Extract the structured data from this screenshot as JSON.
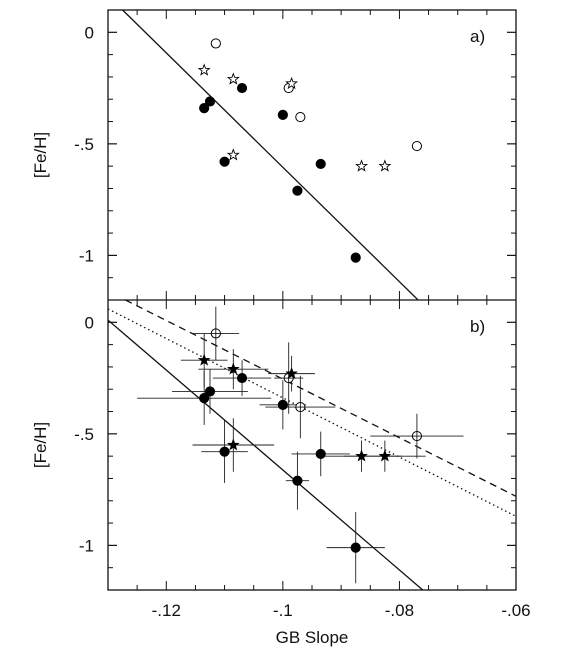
{
  "chart_data": [
    {
      "type": "scatter",
      "panel_label": "a)",
      "xlabel": "",
      "ylabel": "[Fe/H]",
      "xlim": [
        -0.13,
        -0.06
      ],
      "ylim": [
        -1.2,
        0.1
      ],
      "y_ticks": [
        "0",
        "-.5",
        "-1"
      ],
      "y_tick_values": [
        0,
        -0.5,
        -1
      ],
      "x_ticks": [],
      "grid": false,
      "series": [
        {
          "marker": "filled-circle",
          "points": [
            {
              "x": -0.1135,
              "y": -0.34
            },
            {
              "x": -0.1125,
              "y": -0.31
            },
            {
              "x": -0.11,
              "y": -0.58
            },
            {
              "x": -0.107,
              "y": -0.25
            },
            {
              "x": -0.1,
              "y": -0.37
            },
            {
              "x": -0.0975,
              "y": -0.71
            },
            {
              "x": -0.0935,
              "y": -0.59
            },
            {
              "x": -0.0875,
              "y": -1.01
            }
          ]
        },
        {
          "marker": "open-circle",
          "points": [
            {
              "x": -0.1115,
              "y": -0.05
            },
            {
              "x": -0.099,
              "y": -0.25
            },
            {
              "x": -0.097,
              "y": -0.38
            },
            {
              "x": -0.077,
              "y": -0.51
            }
          ]
        },
        {
          "marker": "open-star",
          "points": [
            {
              "x": -0.1135,
              "y": -0.17
            },
            {
              "x": -0.1085,
              "y": -0.21
            },
            {
              "x": -0.0985,
              "y": -0.23
            },
            {
              "x": -0.1085,
              "y": -0.55
            },
            {
              "x": -0.0865,
              "y": -0.6
            },
            {
              "x": -0.0825,
              "y": -0.6
            }
          ]
        }
      ],
      "lines": [
        {
          "style": "solid",
          "x": [
            -0.1275,
            -0.0768
          ],
          "y": [
            0.1,
            -1.2
          ]
        }
      ]
    },
    {
      "type": "scatter",
      "panel_label": "b)",
      "xlabel": "GB Slope",
      "ylabel": "[Fe/H]",
      "xlim": [
        -0.13,
        -0.06
      ],
      "ylim": [
        -1.2,
        0.1
      ],
      "y_ticks": [
        "0",
        "-.5",
        "-1"
      ],
      "y_tick_values": [
        0,
        -0.5,
        -1
      ],
      "x_ticks": [
        "-.12",
        "-.1",
        "-.08",
        "-.06"
      ],
      "x_tick_values": [
        -0.12,
        -0.1,
        -0.08,
        -0.06
      ],
      "grid": false,
      "series": [
        {
          "marker": "filled-circle",
          "points": [
            {
              "x": -0.1135,
              "y": -0.34,
              "xerr": 0.0115,
              "yerr": 0.12
            },
            {
              "x": -0.1125,
              "y": -0.31,
              "xerr": 0.0065,
              "yerr": 0.1
            },
            {
              "x": -0.11,
              "y": -0.58,
              "xerr": 0.004,
              "yerr": 0.14
            },
            {
              "x": -0.107,
              "y": -0.25,
              "xerr": 0.005,
              "yerr": 0.08
            },
            {
              "x": -0.1,
              "y": -0.37,
              "xerr": 0.004,
              "yerr": 0.11
            },
            {
              "x": -0.0975,
              "y": -0.71,
              "xerr": 0.002,
              "yerr": 0.13
            },
            {
              "x": -0.0935,
              "y": -0.59,
              "xerr": 0.005,
              "yerr": 0.1
            },
            {
              "x": -0.0875,
              "y": -1.01,
              "xerr": 0.005,
              "yerr": 0.16
            }
          ]
        },
        {
          "marker": "open-circle",
          "points": [
            {
              "x": -0.1115,
              "y": -0.05,
              "xerr": 0.004,
              "yerr": 0.12
            },
            {
              "x": -0.099,
              "y": -0.25,
              "xerr": 0.0025,
              "yerr": 0.16
            },
            {
              "x": -0.097,
              "y": -0.38,
              "xerr": 0.006,
              "yerr": 0.14
            },
            {
              "x": -0.077,
              "y": -0.51,
              "xerr": 0.008,
              "yerr": 0.1
            }
          ]
        },
        {
          "marker": "filled-star",
          "points": [
            {
              "x": -0.1135,
              "y": -0.17,
              "xerr": 0.004,
              "yerr": 0.12
            },
            {
              "x": -0.1085,
              "y": -0.21,
              "xerr": 0.006,
              "yerr": 0.09
            },
            {
              "x": -0.0985,
              "y": -0.23,
              "xerr": 0.004,
              "yerr": 0.08
            },
            {
              "x": -0.1085,
              "y": -0.55,
              "xerr": 0.007,
              "yerr": 0.12
            },
            {
              "x": -0.0865,
              "y": -0.6,
              "xerr": 0.007,
              "yerr": 0.07
            },
            {
              "x": -0.0825,
              "y": -0.6,
              "xerr": 0.007,
              "yerr": 0.07
            }
          ]
        }
      ],
      "lines": [
        {
          "style": "solid",
          "x": [
            -0.13,
            -0.076
          ],
          "y": [
            0.01,
            -1.2
          ]
        },
        {
          "style": "dashed",
          "x": [
            -0.127,
            -0.06
          ],
          "y": [
            0.1,
            -0.78
          ]
        },
        {
          "style": "dotted",
          "x": [
            -0.13,
            -0.06
          ],
          "y": [
            0.06,
            -0.87
          ]
        }
      ]
    }
  ]
}
